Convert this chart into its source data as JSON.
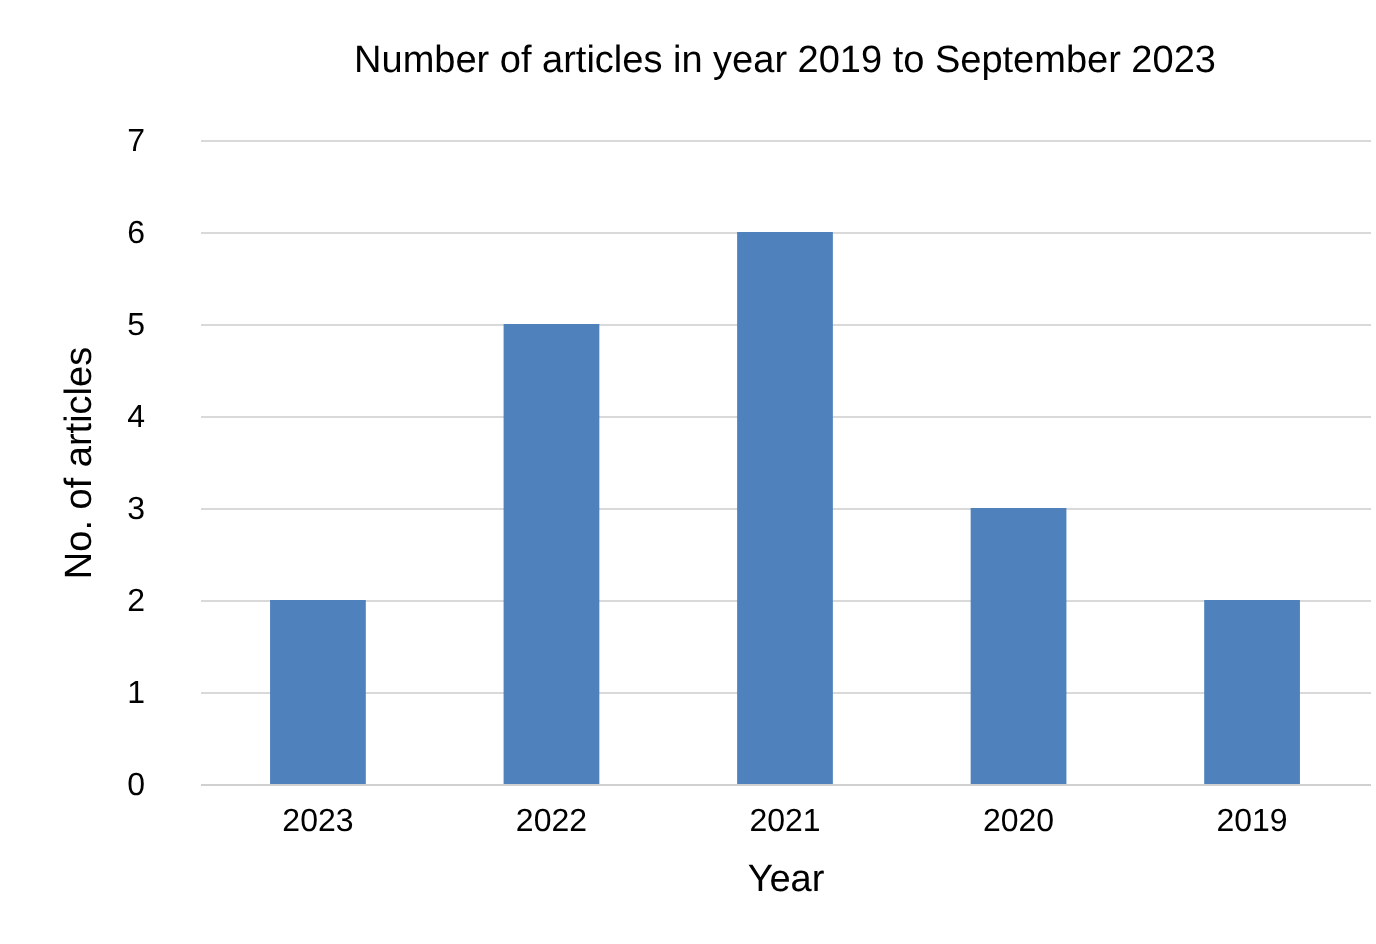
{
  "chart_data": {
    "type": "bar",
    "title": "Number of articles in year 2019 to September 2023",
    "xlabel": "Year",
    "ylabel": "No. of articles",
    "categories": [
      "2023",
      "2022",
      "2021",
      "2020",
      "2019"
    ],
    "values": [
      2,
      5,
      6,
      3,
      2
    ],
    "color": "#4f81bd",
    "ylim": [
      0,
      7
    ],
    "yticks": [
      0,
      1,
      2,
      3,
      4,
      5,
      6,
      7
    ],
    "grid": "y"
  }
}
